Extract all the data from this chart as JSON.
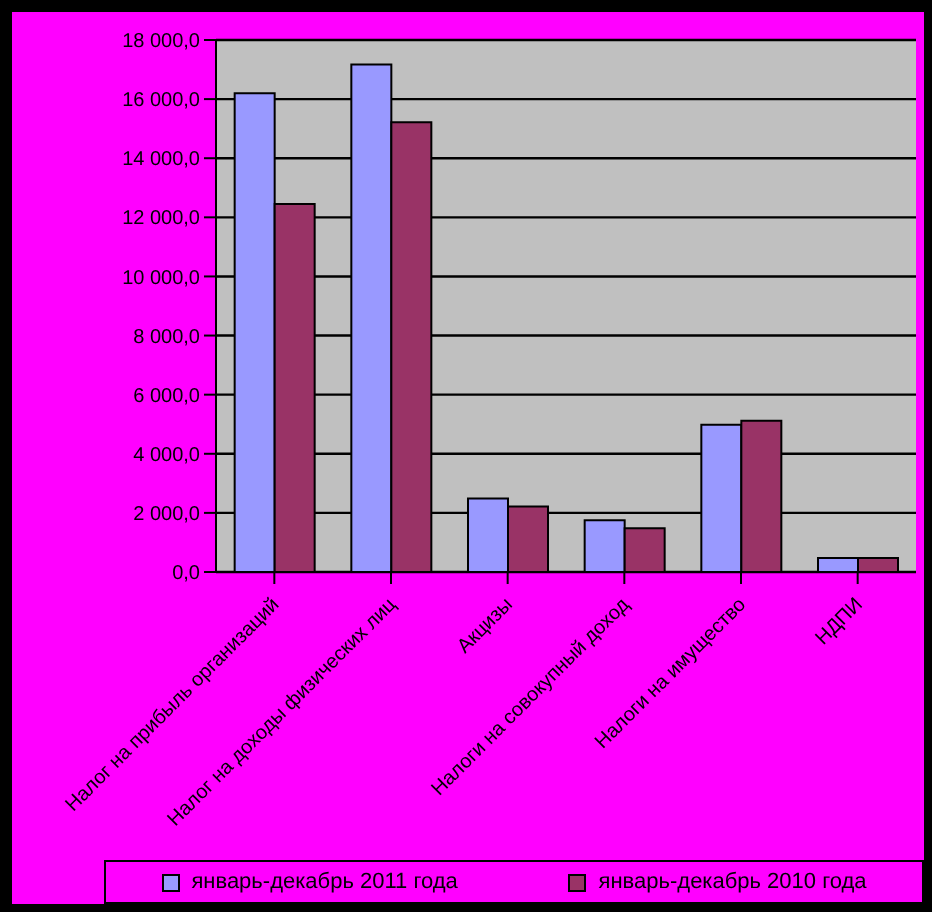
{
  "chart_data": {
    "type": "bar",
    "categories": [
      "Налог на прибыль организаций",
      "Налог на доходы физических лиц",
      "Акцизы",
      "Налоги на совокупный доход",
      "Налоги на имущество",
      "НДПИ"
    ],
    "series": [
      {
        "name": "январь-декабрь  2011 года",
        "color": "#9999ff",
        "values": [
          16200,
          17170,
          2490,
          1750,
          4980,
          470
        ]
      },
      {
        "name": "январь-декабрь  2010 года",
        "color": "#993366",
        "values": [
          12450,
          15220,
          2220,
          1480,
          5120,
          470
        ]
      }
    ],
    "ylim": [
      0,
      18000
    ],
    "yticks": [
      {
        "value": 0,
        "label": "0,0"
      },
      {
        "value": 2000,
        "label": "2 000,0"
      },
      {
        "value": 4000,
        "label": "4 000,0"
      },
      {
        "value": 6000,
        "label": "6 000,0"
      },
      {
        "value": 8000,
        "label": "8 000,0"
      },
      {
        "value": 10000,
        "label": "10 000,0"
      },
      {
        "value": 12000,
        "label": "12 000,0"
      },
      {
        "value": 14000,
        "label": "14 000,0"
      },
      {
        "value": 16000,
        "label": "16 000,0"
      },
      {
        "value": 18000,
        "label": "18 000,0"
      }
    ],
    "grid": "y",
    "legend": "bottom"
  }
}
